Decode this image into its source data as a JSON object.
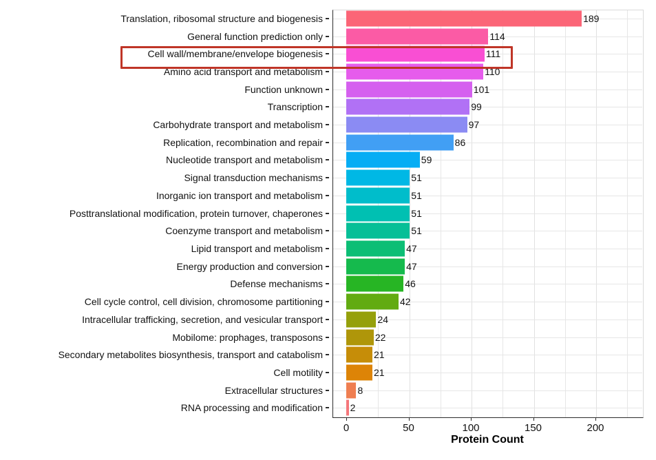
{
  "colors": {
    "background": "#FFFFFF",
    "axis_line": "#2B2B2B",
    "gridline": "#E6E6E6",
    "text": "#111111",
    "highlight_box": "#BF3527"
  },
  "chart_data": {
    "type": "bar",
    "orientation": "horizontal",
    "title": "",
    "xlabel": "Protein Count",
    "ylabel": "",
    "x_ticks": [
      0,
      50,
      100,
      150,
      200
    ],
    "xlim": [
      0,
      237
    ],
    "grid": "vertical major every 50 + minor every 25, horizontal line at each category",
    "legend": "none",
    "categories": [
      "Translation, ribosomal structure and biogenesis",
      "General function prediction only",
      "Cell wall/membrane/envelope biogenesis",
      "Amino acid transport and metabolism",
      "Function unknown",
      "Transcription",
      "Carbohydrate transport and metabolism",
      "Replication, recombination and repair",
      "Nucleotide transport and metabolism",
      "Signal transduction mechanisms",
      "Inorganic ion transport and metabolism",
      "Posttranslational modification, protein turnover, chaperones",
      "Coenzyme transport and metabolism",
      "Lipid transport and metabolism",
      "Energy production and conversion",
      "Defense mechanisms",
      "Cell cycle control, cell division, chromosome partitioning",
      "Intracellular trafficking, secretion, and vesicular transport",
      "Mobilome: prophages, transposons",
      "Secondary metabolites biosynthesis, transport and catabolism",
      "Cell motility",
      "Extracellular structures",
      "RNA processing and modification"
    ],
    "values": [
      189,
      114,
      111,
      110,
      101,
      99,
      97,
      86,
      59,
      51,
      51,
      51,
      51,
      47,
      47,
      46,
      42,
      24,
      22,
      21,
      21,
      8,
      2
    ],
    "bar_colors": [
      "#FB6577",
      "#FB5BA5",
      "#F94FD3",
      "#E65CEC",
      "#D560EF",
      "#B171F5",
      "#8B8BF3",
      "#419FF4",
      "#06ADF4",
      "#00B8E5",
      "#00BDCB",
      "#00C0B2",
      "#06BF97",
      "#0CBE75",
      "#15BA4D",
      "#27B524",
      "#62AB11",
      "#95A00B",
      "#AF960A",
      "#C68D08",
      "#DD8407",
      "#EF7E51",
      "#F5777B"
    ],
    "highlight": {
      "category": "Cell wall/membrane/envelope biogenesis",
      "index": 2,
      "box_color": "#BF3527"
    }
  }
}
